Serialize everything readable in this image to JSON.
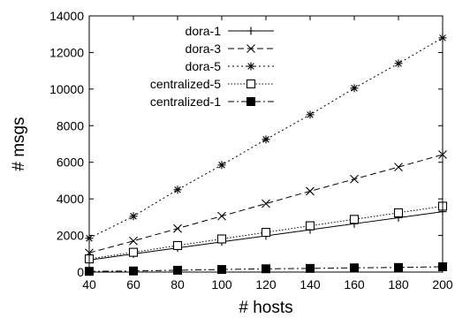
{
  "chart_data": {
    "type": "line",
    "title": "",
    "xlabel": "# hosts",
    "ylabel": "# msgs",
    "xlim": [
      40,
      200
    ],
    "ylim": [
      0,
      14000
    ],
    "x_ticks": [
      40,
      60,
      80,
      100,
      120,
      140,
      160,
      180,
      200
    ],
    "y_ticks": [
      0,
      2000,
      4000,
      6000,
      8000,
      10000,
      12000,
      14000
    ],
    "x_tick_labels": [
      "40",
      "60",
      "80",
      "100",
      "120",
      "140",
      "160",
      "180",
      "200"
    ],
    "y_tick_labels": [
      "0",
      "2000",
      "4000",
      "6000",
      "8000",
      "10000",
      "12000",
      "14000"
    ],
    "grid": false,
    "legend_position": "top-left",
    "x": [
      40,
      60,
      80,
      100,
      120,
      140,
      160,
      180,
      200
    ],
    "series": [
      {
        "name": "dora-1",
        "marker": "plus",
        "dash": "solid",
        "values": [
          660,
          990,
          1320,
          1650,
          1980,
          2310,
          2640,
          2970,
          3300
        ]
      },
      {
        "name": "dora-3",
        "marker": "cross",
        "dash": "dashed",
        "values": [
          1050,
          1700,
          2380,
          3060,
          3740,
          4420,
          5080,
          5740,
          6420
        ]
      },
      {
        "name": "dora-5",
        "marker": "star",
        "dash": "dotted",
        "values": [
          1850,
          3050,
          4500,
          5850,
          7250,
          8600,
          10050,
          11400,
          12800
        ]
      },
      {
        "name": "centralized-5",
        "marker": "open-square",
        "dash": "dense-dotted",
        "values": [
          720,
          1080,
          1450,
          1810,
          2170,
          2530,
          2880,
          3240,
          3600
        ]
      },
      {
        "name": "centralized-1",
        "marker": "filled-square",
        "dash": "dash-dot",
        "values": [
          40,
          60,
          100,
          140,
          180,
          200,
          230,
          250,
          290
        ]
      }
    ]
  }
}
